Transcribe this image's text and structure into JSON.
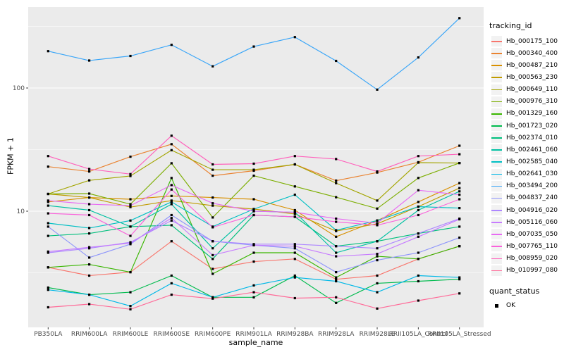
{
  "chart_data": {
    "type": "line",
    "title": "",
    "xlabel": "sample_name",
    "ylabel": "FPKM + 1",
    "y_scale": "log10",
    "y_axis_tick_labels": [
      "100",
      "10"
    ],
    "y_axis_tick_values": [
      100,
      10
    ],
    "y_minor_gridlines": [
      3.162,
      31.62,
      316.2
    ],
    "ylim": [
      1.14,
      454
    ],
    "grid": true,
    "panel_color": "#EBEBEB",
    "gridline_color": "#FFFFFF",
    "marker": "filled-square",
    "marker_color": "#000000",
    "categories": [
      "PB350LA",
      "RRIM600LA",
      "RRIM600LE",
      "RRIM600SE",
      "RRIM600PE",
      "RRIM901LA",
      "RRIM928BA",
      "RRIM928LA",
      "RRIM928LE",
      "RRII105LA_Control",
      "RRII105LA_Stressed"
    ],
    "series": [
      {
        "name": "Hb_000175_100",
        "color": "#F8766D",
        "values": [
          3.5,
          3.0,
          3.2,
          5.7,
          3.4,
          3.9,
          4.1,
          2.8,
          3.0,
          4.1,
          5.2
        ]
      },
      {
        "name": "Hb_000340_400",
        "color": "#EA8331",
        "values": [
          23,
          21,
          27.7,
          35,
          19.4,
          21.3,
          24,
          17.7,
          20.6,
          25,
          34
        ]
      },
      {
        "name": "Hb_000487_210",
        "color": "#D89000",
        "values": [
          11.9,
          12.9,
          12.5,
          13.3,
          12.9,
          12.5,
          10.2,
          6.2,
          8.4,
          11.9,
          16.9
        ]
      },
      {
        "name": "Hb_000563_230",
        "color": "#C09B00",
        "values": [
          13.8,
          12.9,
          10.8,
          12.2,
          11.1,
          10.4,
          9.5,
          6.9,
          7.9,
          10.9,
          15.4
        ]
      },
      {
        "name": "Hb_000649_110",
        "color": "#A3A500",
        "values": [
          13.8,
          17.8,
          19.3,
          31.3,
          21.7,
          21.7,
          24,
          16.9,
          12.2,
          24.8,
          24.6
        ]
      },
      {
        "name": "Hb_000976_310",
        "color": "#7CAE00",
        "values": [
          13.8,
          13.9,
          11.4,
          24.5,
          8.9,
          19.4,
          15.9,
          13,
          10.5,
          18.6,
          24.6
        ]
      },
      {
        "name": "Hb_001329_160",
        "color": "#39B600",
        "values": [
          3.5,
          3.7,
          3.2,
          18.6,
          3.1,
          4.6,
          4.6,
          2.9,
          4.3,
          4.1,
          5.2
        ]
      },
      {
        "name": "Hb_001723_020",
        "color": "#00BB4E",
        "values": [
          2.4,
          2.1,
          2.2,
          3.0,
          2.0,
          2.0,
          3.0,
          1.8,
          2.6,
          2.7,
          2.8
        ]
      },
      {
        "name": "Hb_002374_010",
        "color": "#00BF7D",
        "values": [
          6.3,
          6.6,
          7.5,
          7.7,
          4.1,
          9.3,
          9.0,
          5.2,
          5.7,
          6.6,
          7.5
        ]
      },
      {
        "name": "Hb_002461_060",
        "color": "#00C1A3",
        "values": [
          11.1,
          10.2,
          7.5,
          11.4,
          5.0,
          10.0,
          9.8,
          4.6,
          5.7,
          10.2,
          14.5
        ]
      },
      {
        "name": "Hb_002585_040",
        "color": "#00BFC4",
        "values": [
          8.0,
          7.3,
          8.4,
          11.9,
          7.5,
          10.4,
          13.6,
          7.0,
          8.4,
          10.9,
          10.6
        ]
      },
      {
        "name": "Hb_002641_030",
        "color": "#00B8E7",
        "values": [
          2.3,
          2.1,
          1.7,
          2.6,
          2.0,
          2.5,
          2.9,
          2.7,
          2.2,
          3.0,
          2.9
        ]
      },
      {
        "name": "Hb_003494_200",
        "color": "#38A5F8",
        "values": [
          199,
          167,
          182,
          224,
          150,
          217,
          259,
          166,
          97,
          177,
          369
        ]
      },
      {
        "name": "Hb_004837_240",
        "color": "#8F96FB",
        "values": [
          7.5,
          4.2,
          5.4,
          9.3,
          5.7,
          5.3,
          5.0,
          3.2,
          4.0,
          4.6,
          6.1
        ]
      },
      {
        "name": "Hb_004916_020",
        "color": "#AE87FF",
        "values": [
          4.6,
          5.0,
          5.6,
          8.4,
          5.7,
          5.4,
          5.4,
          5.2,
          5.0,
          6.6,
          8.7
        ]
      },
      {
        "name": "Hb_005116_060",
        "color": "#C77CFF",
        "values": [
          4.7,
          5.1,
          5.5,
          8.8,
          4.4,
          5.3,
          5.2,
          4.3,
          4.5,
          6.2,
          8.6
        ]
      },
      {
        "name": "Hb_007035_050",
        "color": "#E76BF3",
        "values": [
          12.2,
          11.4,
          11.1,
          16.3,
          11.6,
          10.0,
          9.8,
          8.7,
          8.0,
          14.8,
          13.6
        ]
      },
      {
        "name": "Hb_007765_110",
        "color": "#FA62DB",
        "values": [
          9.6,
          9.3,
          6.3,
          15.0,
          7.4,
          9.3,
          9.0,
          8.2,
          7.7,
          9.3,
          12.5
        ]
      },
      {
        "name": "Hb_008959_020",
        "color": "#FF62BC",
        "values": [
          28,
          22,
          20,
          41,
          24,
          24.3,
          28,
          26.5,
          21,
          28,
          29
        ]
      },
      {
        "name": "Hb_010997_080",
        "color": "#FF6A98",
        "values": [
          1.66,
          1.76,
          1.6,
          2.1,
          1.95,
          2.2,
          1.97,
          2.0,
          1.62,
          1.88,
          2.15
        ]
      }
    ],
    "legend": {
      "title": "tracking_id",
      "position": "right"
    },
    "legend2": {
      "title": "quant_status",
      "items": [
        {
          "label": "OK",
          "marker": "black-square"
        }
      ]
    }
  }
}
